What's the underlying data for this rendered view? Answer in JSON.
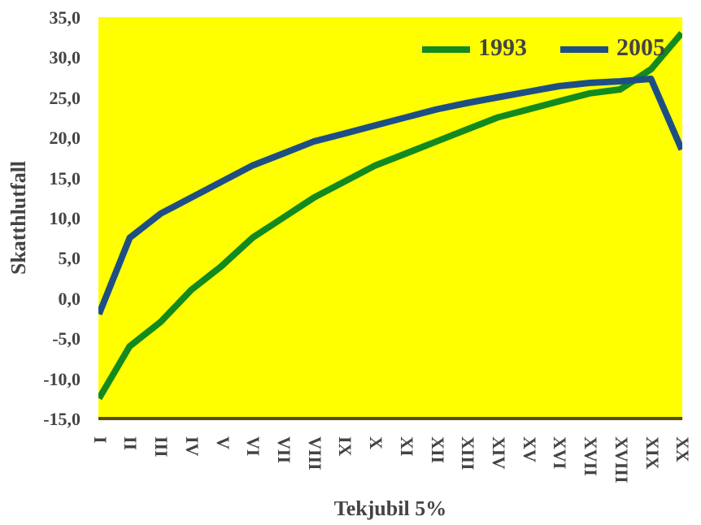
{
  "chart_data": {
    "type": "line",
    "xlabel": "Tekjubil 5%",
    "ylabel": "Skatthlutfall",
    "categories": [
      "I",
      "II",
      "III",
      "IV",
      "V",
      "VI",
      "VII",
      "VIII",
      "IX",
      "X",
      "XI",
      "XII",
      "XIII",
      "XIV",
      "XV",
      "XVI",
      "XVII",
      "XVIII",
      "XIX",
      "XX"
    ],
    "series": [
      {
        "name": "1993",
        "color": "#138a1e",
        "values": [
          -12.5,
          -6,
          -3,
          1,
          4,
          7.5,
          10,
          12.5,
          14.5,
          16.5,
          18,
          19.5,
          21,
          22.5,
          23.5,
          24.5,
          25.5,
          26,
          28.5,
          33
        ]
      },
      {
        "name": "2005",
        "color": "#1e4f84",
        "values": [
          -2,
          7.5,
          10.5,
          12.5,
          14.5,
          16.5,
          18,
          19.5,
          20.5,
          21.5,
          22.5,
          23.5,
          24.3,
          25,
          25.7,
          26.4,
          26.8,
          27,
          27.3,
          18.5
        ]
      }
    ],
    "ylim": [
      -15,
      35
    ],
    "yticks": [
      {
        "value": -15,
        "label": "-15,0"
      },
      {
        "value": -10,
        "label": "-10,0"
      },
      {
        "value": -5,
        "label": "-5,0"
      },
      {
        "value": 0,
        "label": "0,0"
      },
      {
        "value": 5,
        "label": "5,0"
      },
      {
        "value": 10,
        "label": "10,0"
      },
      {
        "value": 15,
        "label": "15,0"
      },
      {
        "value": 20,
        "label": "20,0"
      },
      {
        "value": 25,
        "label": "25,0"
      },
      {
        "value": 30,
        "label": "30,0"
      },
      {
        "value": 35,
        "label": "35,0"
      }
    ],
    "grid": false,
    "legend": "top right",
    "line_style": "solid"
  }
}
